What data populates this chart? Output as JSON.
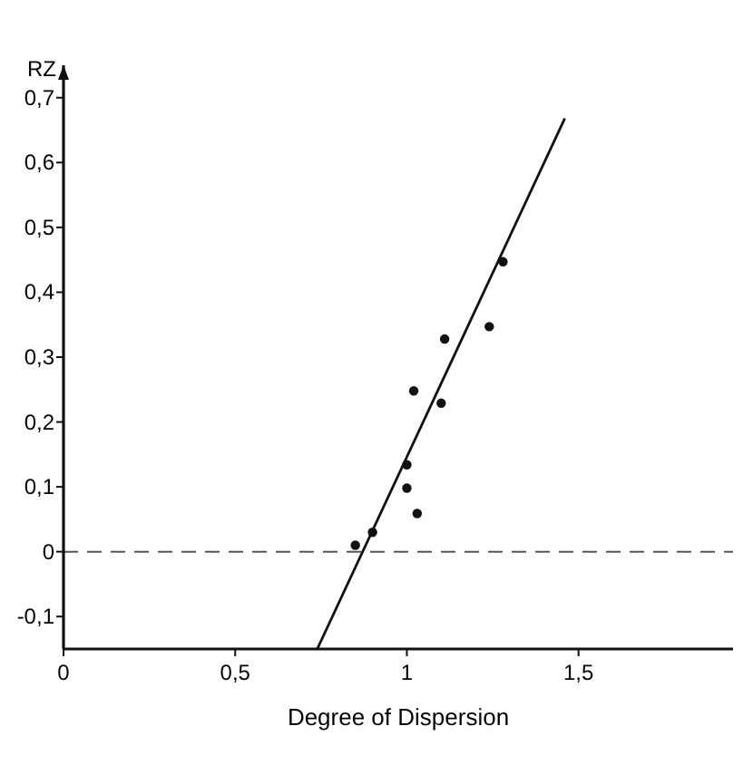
{
  "chart_data": {
    "type": "scatter",
    "xlabel": "Degree of Dispersion",
    "ylabel": "RZ",
    "xlim": [
      0,
      1.95
    ],
    "ylim": [
      -0.15,
      0.75
    ],
    "xticks": [
      0,
      {
        "value": 0.5,
        "label": "0,5"
      },
      1,
      {
        "value": 1.5,
        "label": "1,5"
      }
    ],
    "yticks": [
      {
        "value": -0.1,
        "label": "-0,1"
      },
      0,
      {
        "value": 0.1,
        "label": "0,1"
      },
      {
        "value": 0.2,
        "label": "0,2"
      },
      {
        "value": 0.3,
        "label": "0,3"
      },
      {
        "value": 0.4,
        "label": "0,4"
      },
      {
        "value": 0.5,
        "label": "0,5"
      },
      {
        "value": 0.6,
        "label": "0,6"
      },
      {
        "value": 0.7,
        "label": "0,7"
      }
    ],
    "grid": false,
    "marker": "circle",
    "series": [
      {
        "color": "#111111",
        "x": [
          0.85,
          0.9,
          1.0,
          1.0,
          1.03,
          1.02,
          1.1,
          1.11,
          1.24,
          1.28
        ],
        "values": [
          0.01,
          0.03,
          0.134,
          0.098,
          0.059,
          0.248,
          0.229,
          0.328,
          0.347,
          0.447
        ]
      },
      {
        "type": "line",
        "color": "#111111",
        "x": [
          0.739,
          1.46
        ],
        "values": [
          -0.15,
          0.668
        ],
        "marker": "none",
        "line_style": "solid"
      }
    ],
    "ref_lines": [
      {
        "axis": "y",
        "value": 0,
        "color": "#555555",
        "line_style": "dashed"
      }
    ]
  }
}
